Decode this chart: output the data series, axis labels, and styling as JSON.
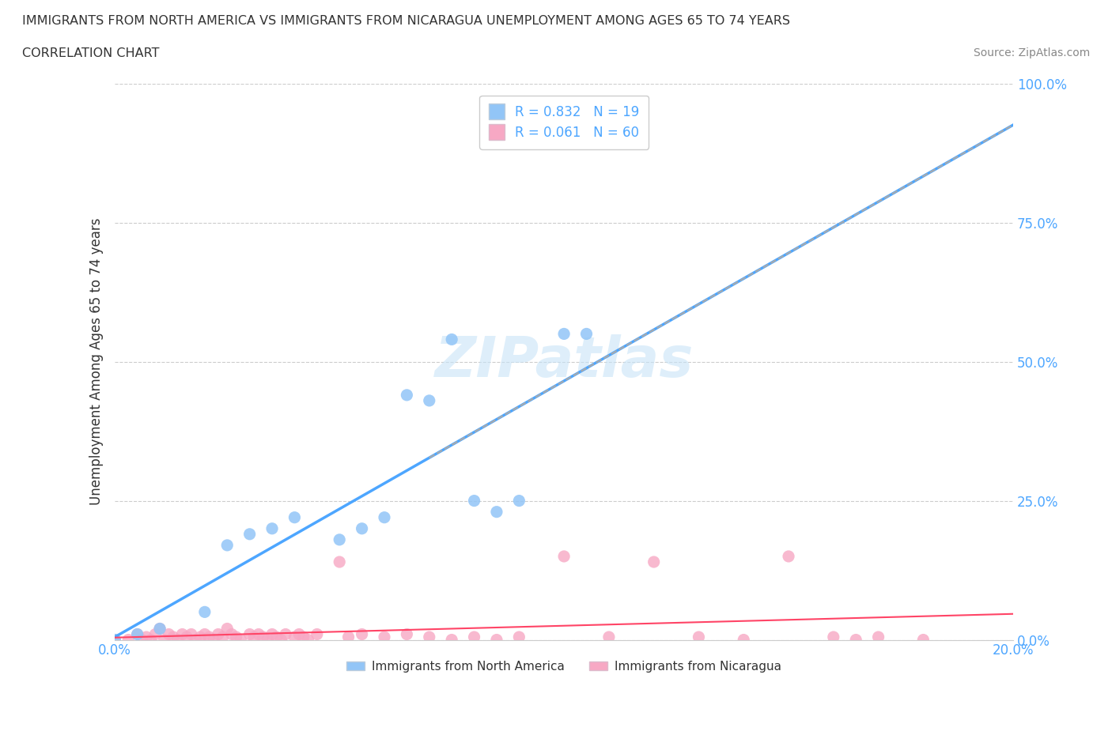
{
  "title_line1": "IMMIGRANTS FROM NORTH AMERICA VS IMMIGRANTS FROM NICARAGUA UNEMPLOYMENT AMONG AGES 65 TO 74 YEARS",
  "title_line2": "CORRELATION CHART",
  "source_text": "Source: ZipAtlas.com",
  "ylabel": "Unemployment Among Ages 65 to 74 years",
  "xlim": [
    0.0,
    0.2
  ],
  "ylim": [
    0.0,
    1.0
  ],
  "series1_name": "Immigrants from North America",
  "series1_color": "#92c5f7",
  "series1_R": 0.832,
  "series1_N": 19,
  "series2_name": "Immigrants from Nicaragua",
  "series2_color": "#f7a8c4",
  "series2_R": 0.061,
  "series2_N": 60,
  "series1_x": [
    0.0,
    0.005,
    0.01,
    0.02,
    0.025,
    0.03,
    0.035,
    0.04,
    0.05,
    0.055,
    0.06,
    0.065,
    0.07,
    0.075,
    0.08,
    0.085,
    0.09,
    0.1,
    0.105
  ],
  "series1_y": [
    0.0,
    0.01,
    0.02,
    0.05,
    0.17,
    0.19,
    0.2,
    0.22,
    0.18,
    0.2,
    0.22,
    0.44,
    0.43,
    0.54,
    0.25,
    0.23,
    0.25,
    0.55,
    0.55
  ],
  "series2_x": [
    0.0,
    0.003,
    0.005,
    0.006,
    0.007,
    0.008,
    0.009,
    0.01,
    0.011,
    0.012,
    0.013,
    0.014,
    0.015,
    0.016,
    0.017,
    0.018,
    0.019,
    0.02,
    0.021,
    0.022,
    0.023,
    0.024,
    0.025,
    0.026,
    0.027,
    0.028,
    0.03,
    0.031,
    0.032,
    0.033,
    0.034,
    0.035,
    0.036,
    0.037,
    0.038,
    0.04,
    0.041,
    0.042,
    0.043,
    0.045,
    0.05,
    0.052,
    0.055,
    0.06,
    0.065,
    0.07,
    0.075,
    0.08,
    0.085,
    0.09,
    0.1,
    0.11,
    0.12,
    0.13,
    0.14,
    0.15,
    0.16,
    0.165,
    0.17,
    0.18
  ],
  "series2_y": [
    0.0,
    0.0,
    0.01,
    0.0,
    0.005,
    0.0,
    0.01,
    0.02,
    0.0,
    0.01,
    0.005,
    0.0,
    0.01,
    0.005,
    0.01,
    0.0,
    0.005,
    0.01,
    0.005,
    0.0,
    0.01,
    0.005,
    0.02,
    0.01,
    0.005,
    0.0,
    0.01,
    0.005,
    0.01,
    0.005,
    0.0,
    0.01,
    0.005,
    0.0,
    0.01,
    0.005,
    0.01,
    0.005,
    0.0,
    0.01,
    0.14,
    0.005,
    0.01,
    0.005,
    0.01,
    0.005,
    0.0,
    0.005,
    0.0,
    0.005,
    0.15,
    0.005,
    0.14,
    0.005,
    0.0,
    0.15,
    0.005,
    0.0,
    0.005,
    0.0
  ],
  "trendline1_color": "#4da6ff",
  "trendline2_color": "#ff4466",
  "trendline_dash_color": "#aaaaaa",
  "background_color": "#ffffff",
  "grid_color": "#cccccc"
}
